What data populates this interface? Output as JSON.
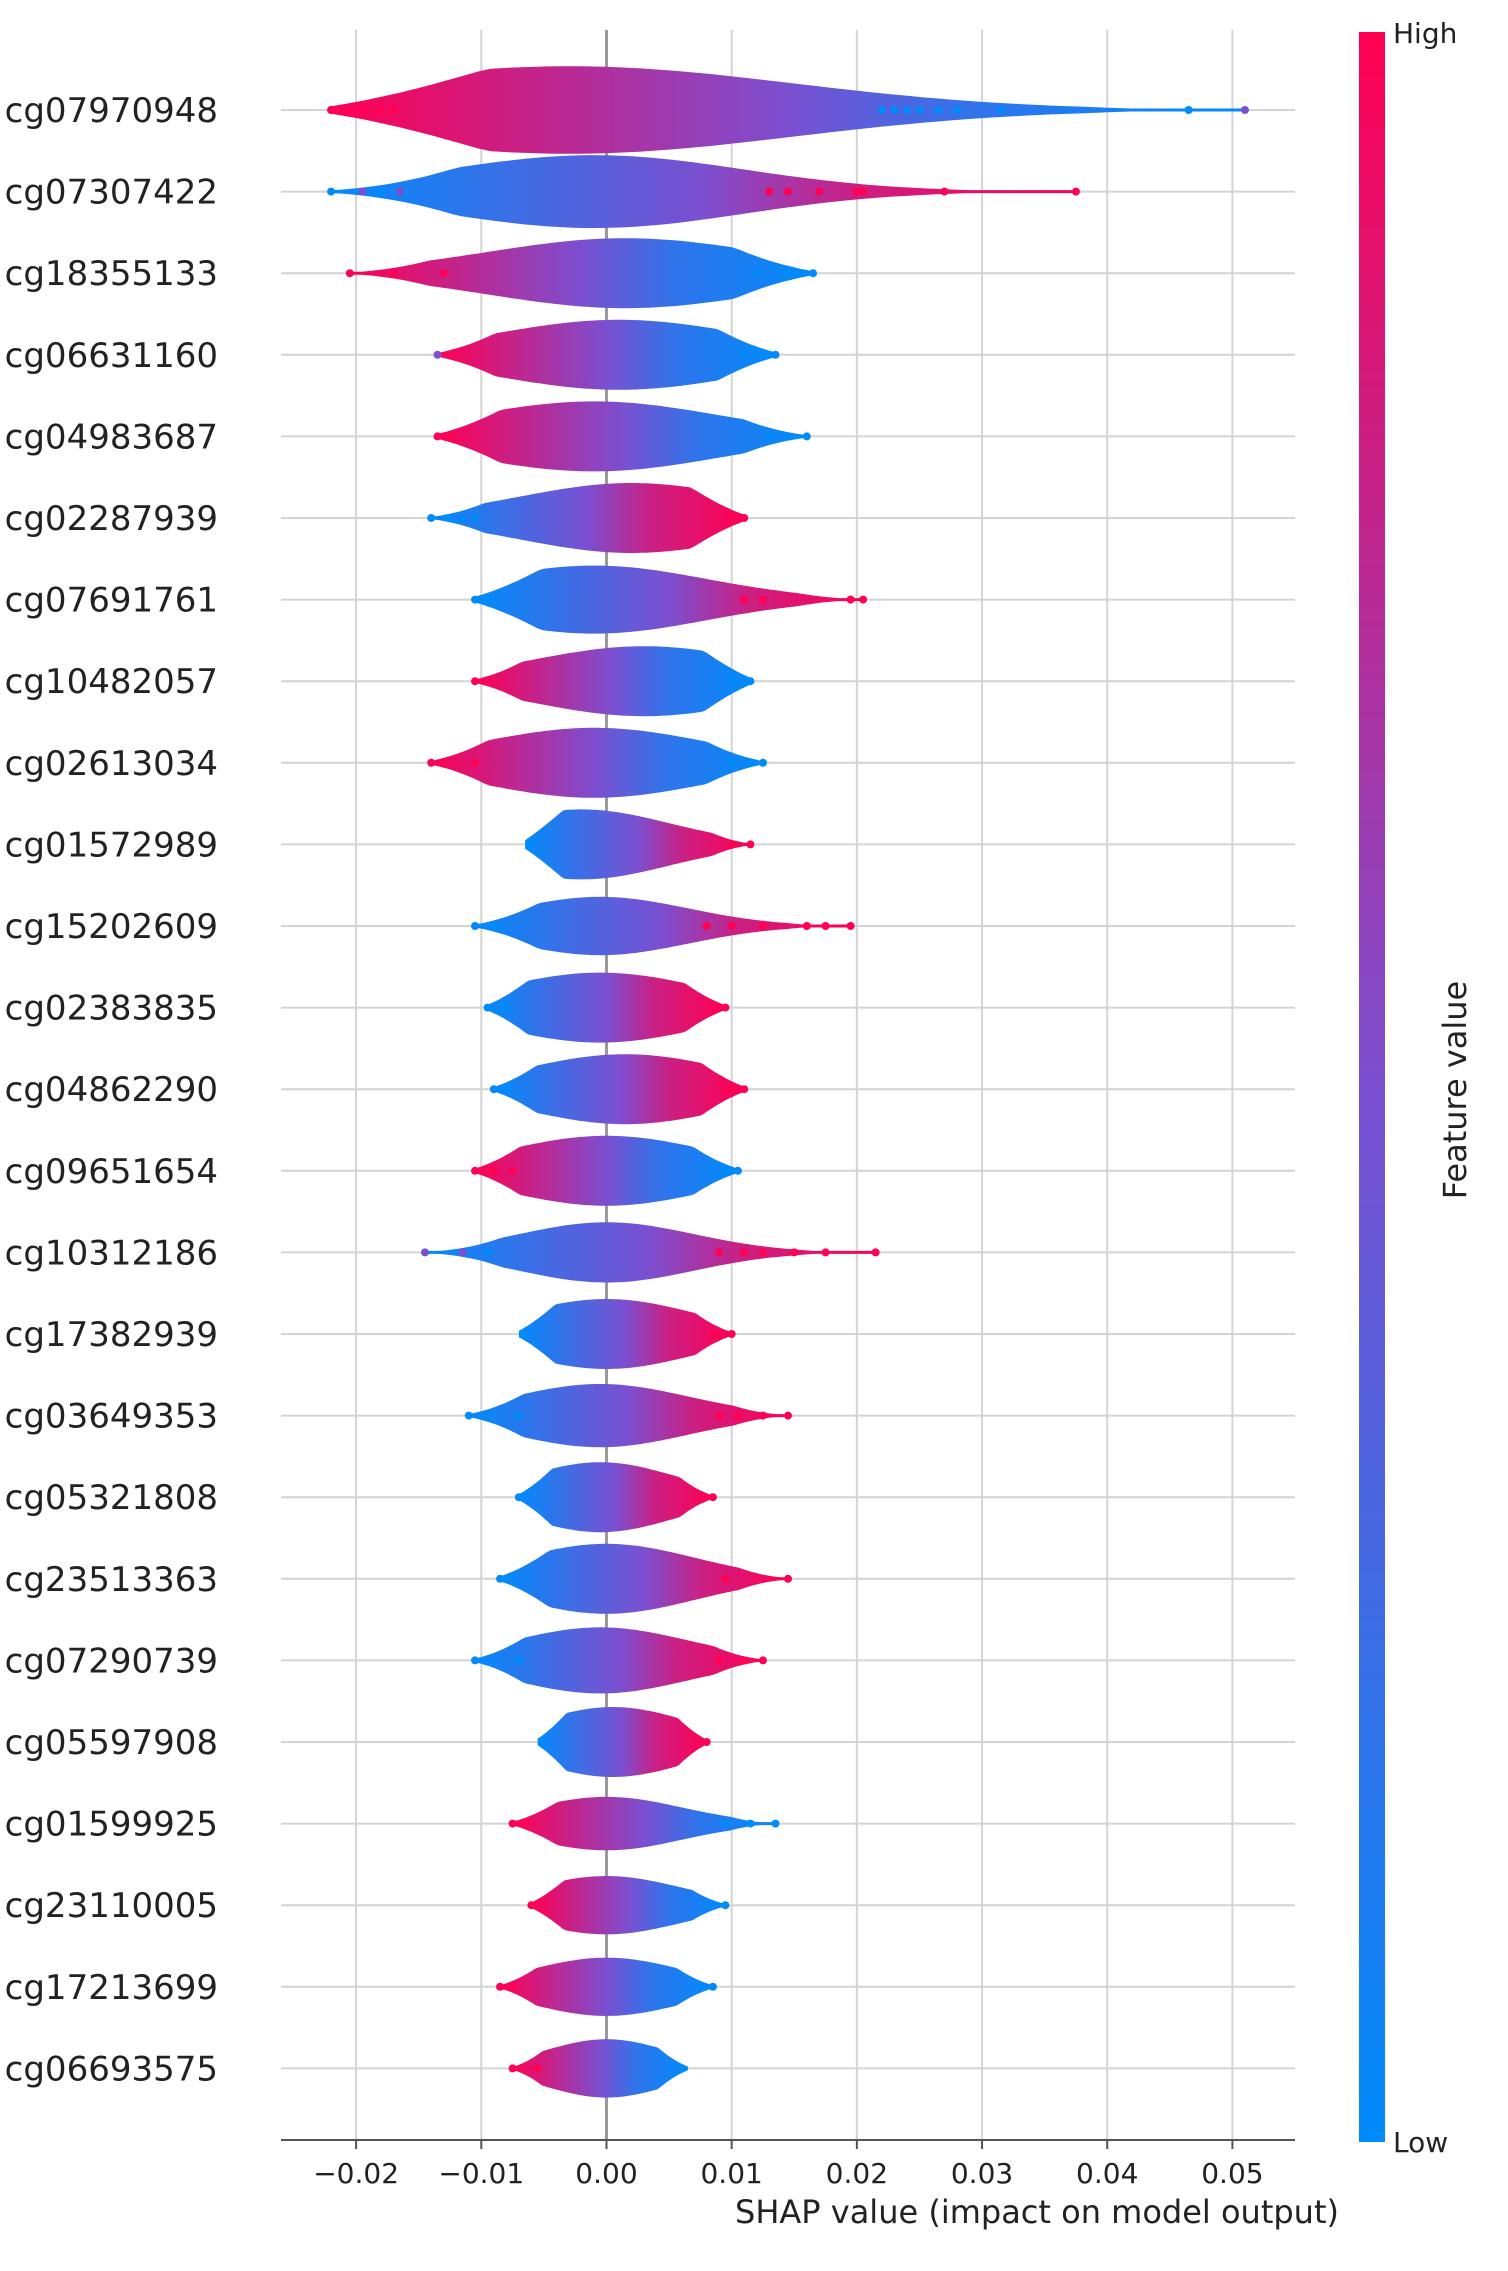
{
  "chart_data": {
    "type": "violin",
    "xlabel": "SHAP value (impact on model output)",
    "xlim": [
      -0.026,
      0.055
    ],
    "x_ticks": [
      -0.02,
      -0.01,
      0.0,
      0.01,
      0.02,
      0.03,
      0.04,
      0.05
    ],
    "x_tick_labels": [
      "−0.02",
      "−0.01",
      "0.00",
      "0.01",
      "0.02",
      "0.03",
      "0.04",
      "0.05"
    ],
    "grid": true,
    "zero_line": true,
    "colorbar": {
      "label": "Feature value",
      "high_label": "High",
      "low_label": "Low",
      "high_color": "#ff0052",
      "mid_color": "#7b4fd0",
      "low_color": "#008bfb"
    },
    "features": [
      {
        "name": "cg07970948",
        "min": -0.022,
        "max": 0.051,
        "peak": -0.003,
        "width": 0.9,
        "lowSide": "right",
        "spread": 0.018,
        "outliers": [
          [
            -0.022,
            "h"
          ],
          [
            -0.0195,
            "h"
          ],
          [
            -0.018,
            "h"
          ],
          [
            -0.017,
            "h"
          ],
          [
            0.022,
            "l"
          ],
          [
            0.023,
            "l"
          ],
          [
            0.024,
            "l"
          ],
          [
            0.025,
            "l"
          ],
          [
            0.0265,
            "l"
          ],
          [
            0.028,
            "l"
          ],
          [
            0.0315,
            "l"
          ],
          [
            0.0465,
            "l"
          ],
          [
            0.051,
            "m"
          ]
        ]
      },
      {
        "name": "cg07307422",
        "min": -0.022,
        "max": 0.0375,
        "peak": -0.001,
        "width": 0.75,
        "lowSide": "left",
        "spread": 0.012,
        "outliers": [
          [
            -0.022,
            "l"
          ],
          [
            -0.0195,
            "m"
          ],
          [
            -0.018,
            "l"
          ],
          [
            -0.0165,
            "m"
          ],
          [
            0.013,
            "h"
          ],
          [
            0.0145,
            "h"
          ],
          [
            0.017,
            "h"
          ],
          [
            0.02,
            "h"
          ],
          [
            0.0205,
            "h"
          ],
          [
            0.027,
            "h"
          ],
          [
            0.0375,
            "h"
          ]
        ]
      },
      {
        "name": "cg18355133",
        "min": -0.0205,
        "max": 0.0165,
        "peak": 0.0015,
        "width": 0.72,
        "lowSide": "right",
        "spread": 0.011,
        "outliers": [
          [
            -0.0205,
            "h"
          ],
          [
            -0.017,
            "h"
          ],
          [
            -0.013,
            "h"
          ],
          [
            0.012,
            "l"
          ],
          [
            0.0145,
            "l"
          ],
          [
            0.0165,
            "l"
          ]
        ]
      },
      {
        "name": "cg06631160",
        "min": -0.0135,
        "max": 0.0135,
        "peak": 0.001,
        "width": 0.72,
        "lowSide": "right",
        "spread": 0.01,
        "outliers": [
          [
            -0.0135,
            "m"
          ],
          [
            0.011,
            "l"
          ],
          [
            0.0135,
            "l"
          ]
        ]
      },
      {
        "name": "cg04983687",
        "min": -0.0135,
        "max": 0.016,
        "peak": -0.001,
        "width": 0.72,
        "lowSide": "right",
        "spread": 0.01,
        "outliers": [
          [
            -0.0135,
            "h"
          ],
          [
            -0.0125,
            "h"
          ],
          [
            0.013,
            "l"
          ],
          [
            0.0145,
            "l"
          ],
          [
            0.016,
            "l"
          ]
        ]
      },
      {
        "name": "cg02287939",
        "min": -0.014,
        "max": 0.011,
        "peak": 0.002,
        "width": 0.72,
        "lowSide": "left",
        "spread": 0.009,
        "outliers": [
          [
            -0.014,
            "l"
          ],
          [
            -0.0125,
            "l"
          ],
          [
            -0.0115,
            "l"
          ],
          [
            -0.0105,
            "l"
          ],
          [
            0.01,
            "h"
          ],
          [
            0.011,
            "h"
          ]
        ]
      },
      {
        "name": "cg07691761",
        "min": -0.0105,
        "max": 0.0205,
        "peak": -0.001,
        "width": 0.7,
        "lowSide": "left",
        "spread": 0.009,
        "outliers": [
          [
            -0.0105,
            "l"
          ],
          [
            -0.0095,
            "l"
          ],
          [
            0.011,
            "h"
          ],
          [
            0.0125,
            "h"
          ],
          [
            0.0195,
            "h"
          ],
          [
            0.0205,
            "h"
          ]
        ]
      },
      {
        "name": "cg10482057",
        "min": -0.0105,
        "max": 0.0115,
        "peak": 0.003,
        "width": 0.72,
        "lowSide": "right",
        "spread": 0.009,
        "outliers": [
          [
            -0.0105,
            "h"
          ],
          [
            0.01,
            "l"
          ],
          [
            0.0115,
            "l"
          ]
        ]
      },
      {
        "name": "cg02613034",
        "min": -0.014,
        "max": 0.0125,
        "peak": -0.001,
        "width": 0.72,
        "lowSide": "right",
        "spread": 0.009,
        "outliers": [
          [
            -0.014,
            "h"
          ],
          [
            -0.0105,
            "h"
          ],
          [
            0.01,
            "l"
          ],
          [
            0.0115,
            "l"
          ],
          [
            0.0125,
            "l"
          ]
        ]
      },
      {
        "name": "cg01572989",
        "min": -0.0065,
        "max": 0.0115,
        "peak": -0.002,
        "width": 0.72,
        "lowSide": "left",
        "spread": 0.007,
        "outliers": [
          [
            0.01,
            "h"
          ],
          [
            0.0115,
            "h"
          ]
        ]
      },
      {
        "name": "cg15202609",
        "min": -0.0105,
        "max": 0.0195,
        "peak": -0.0005,
        "width": 0.6,
        "lowSide": "left",
        "spread": 0.007,
        "outliers": [
          [
            -0.0105,
            "l"
          ],
          [
            -0.009,
            "l"
          ],
          [
            0.008,
            "h"
          ],
          [
            0.01,
            "h"
          ],
          [
            0.0125,
            "h"
          ],
          [
            0.016,
            "h"
          ],
          [
            0.0175,
            "h"
          ],
          [
            0.0195,
            "h"
          ]
        ]
      },
      {
        "name": "cg02383835",
        "min": -0.0095,
        "max": 0.0095,
        "peak": -0.0005,
        "width": 0.72,
        "lowSide": "left",
        "spread": 0.008,
        "outliers": [
          [
            -0.0095,
            "l"
          ],
          [
            -0.008,
            "l"
          ],
          [
            0.009,
            "h"
          ],
          [
            0.0095,
            "h"
          ]
        ]
      },
      {
        "name": "cg04862290",
        "min": -0.009,
        "max": 0.011,
        "peak": 0.0015,
        "width": 0.72,
        "lowSide": "left",
        "spread": 0.008,
        "outliers": [
          [
            -0.009,
            "l"
          ],
          [
            -0.008,
            "l"
          ],
          [
            0.0095,
            "h"
          ],
          [
            0.011,
            "h"
          ]
        ]
      },
      {
        "name": "cg09651654",
        "min": -0.0105,
        "max": 0.0105,
        "peak": 0.0,
        "width": 0.72,
        "lowSide": "right",
        "spread": 0.008,
        "outliers": [
          [
            -0.0105,
            "h"
          ],
          [
            -0.009,
            "h"
          ],
          [
            -0.0075,
            "h"
          ],
          [
            0.0095,
            "l"
          ],
          [
            0.0105,
            "l"
          ]
        ]
      },
      {
        "name": "cg10312186",
        "min": -0.0145,
        "max": 0.0215,
        "peak": 0.0,
        "width": 0.62,
        "lowSide": "left",
        "spread": 0.007,
        "outliers": [
          [
            -0.0145,
            "m"
          ],
          [
            -0.0115,
            "m"
          ],
          [
            -0.0095,
            "l"
          ],
          [
            0.009,
            "h"
          ],
          [
            0.011,
            "h"
          ],
          [
            0.0125,
            "h"
          ],
          [
            0.015,
            "h"
          ],
          [
            0.0175,
            "h"
          ],
          [
            0.0215,
            "h"
          ]
        ]
      },
      {
        "name": "cg17382939",
        "min": -0.007,
        "max": 0.01,
        "peak": 0.0,
        "width": 0.72,
        "lowSide": "left",
        "spread": 0.007,
        "outliers": [
          [
            0.0085,
            "h"
          ],
          [
            0.01,
            "h"
          ]
        ]
      },
      {
        "name": "cg03649353",
        "min": -0.011,
        "max": 0.0145,
        "peak": -0.0005,
        "width": 0.65,
        "lowSide": "left",
        "spread": 0.007,
        "outliers": [
          [
            -0.011,
            "l"
          ],
          [
            -0.007,
            "l"
          ],
          [
            0.009,
            "h"
          ],
          [
            0.0105,
            "h"
          ],
          [
            0.0125,
            "h"
          ],
          [
            0.0145,
            "h"
          ]
        ]
      },
      {
        "name": "cg05321808",
        "min": -0.007,
        "max": 0.0085,
        "peak": -0.0005,
        "width": 0.72,
        "lowSide": "left",
        "spread": 0.006,
        "outliers": [
          [
            -0.007,
            "l"
          ],
          [
            0.0085,
            "h"
          ]
        ]
      },
      {
        "name": "cg23513363",
        "min": -0.0085,
        "max": 0.0145,
        "peak": 0.0,
        "width": 0.72,
        "lowSide": "left",
        "spread": 0.007,
        "outliers": [
          [
            -0.0085,
            "l"
          ],
          [
            0.0095,
            "h"
          ],
          [
            0.0145,
            "h"
          ]
        ]
      },
      {
        "name": "cg07290739",
        "min": -0.0105,
        "max": 0.0125,
        "peak": -0.0005,
        "width": 0.68,
        "lowSide": "left",
        "spread": 0.007,
        "outliers": [
          [
            -0.0105,
            "l"
          ],
          [
            -0.007,
            "l"
          ],
          [
            0.009,
            "h"
          ],
          [
            0.011,
            "h"
          ],
          [
            0.0125,
            "h"
          ]
        ]
      },
      {
        "name": "cg05597908",
        "min": -0.0055,
        "max": 0.008,
        "peak": 0.0005,
        "width": 0.72,
        "lowSide": "left",
        "spread": 0.006,
        "outliers": [
          [
            0.008,
            "h"
          ]
        ]
      },
      {
        "name": "cg01599925",
        "min": -0.0075,
        "max": 0.0135,
        "peak": 0.0,
        "width": 0.55,
        "lowSide": "right",
        "spread": 0.006,
        "outliers": [
          [
            -0.0075,
            "h"
          ],
          [
            -0.0065,
            "h"
          ],
          [
            0.0095,
            "l"
          ],
          [
            0.0115,
            "l"
          ],
          [
            0.0135,
            "l"
          ]
        ]
      },
      {
        "name": "cg23110005",
        "min": -0.006,
        "max": 0.0095,
        "peak": 0.0,
        "width": 0.6,
        "lowSide": "right",
        "spread": 0.006,
        "outliers": [
          [
            -0.006,
            "h"
          ],
          [
            0.0095,
            "l"
          ]
        ]
      },
      {
        "name": "cg17213699",
        "min": -0.0085,
        "max": 0.0085,
        "peak": 0.0,
        "width": 0.6,
        "lowSide": "right",
        "spread": 0.006,
        "outliers": [
          [
            -0.0085,
            "h"
          ],
          [
            -0.0075,
            "h"
          ],
          [
            0.0085,
            "l"
          ]
        ]
      },
      {
        "name": "cg06693575",
        "min": -0.0075,
        "max": 0.0065,
        "peak": 0.0,
        "width": 0.6,
        "lowSide": "right",
        "spread": 0.005,
        "outliers": [
          [
            -0.0075,
            "h"
          ],
          [
            -0.0055,
            "h"
          ]
        ]
      }
    ]
  }
}
